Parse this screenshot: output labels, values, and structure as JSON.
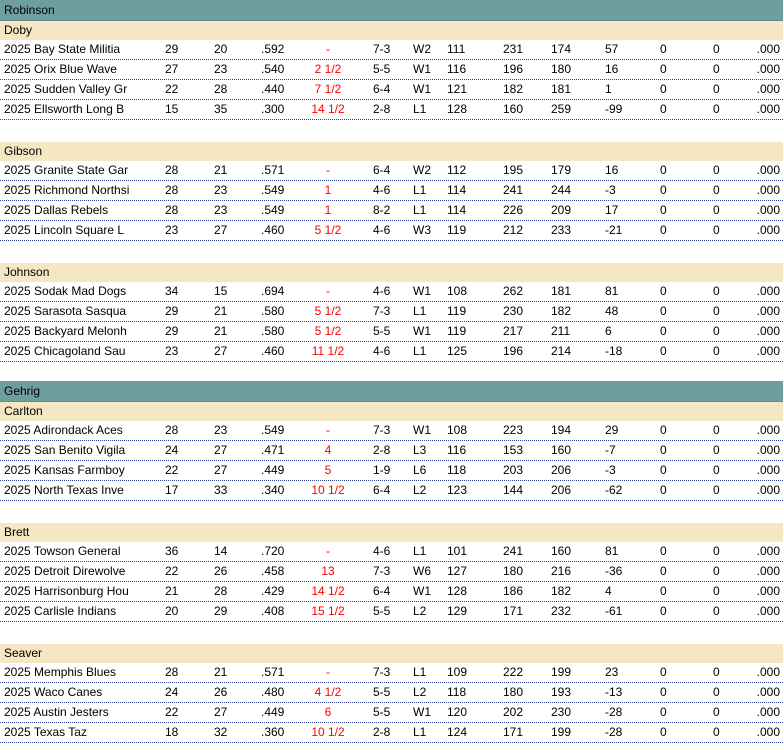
{
  "leagues": [
    {
      "name": "Robinson",
      "divisions": [
        {
          "name": "Doby",
          "teams": [
            [
              "2025 Bay State Militia",
              "29",
              "20",
              ".592",
              "-",
              "7-3",
              "W2",
              "111",
              "231",
              "174",
              "57",
              "0",
              "0",
              ".000"
            ],
            [
              "2025 Orix  Blue Wave",
              "27",
              "23",
              ".540",
              "2 1/2",
              "5-5",
              "W1",
              "116",
              "196",
              "180",
              "16",
              "0",
              "0",
              ".000"
            ],
            [
              "2025 Sudden Valley Gr",
              "22",
              "28",
              ".440",
              "7 1/2",
              "6-4",
              "W1",
              "121",
              "182",
              "181",
              "1",
              "0",
              "0",
              ".000"
            ],
            [
              "2025 Ellsworth Long B",
              "15",
              "35",
              ".300",
              "14 1/2",
              "2-8",
              "L1",
              "128",
              "160",
              "259",
              "-99",
              "0",
              "0",
              ".000"
            ]
          ]
        },
        {
          "name": "Gibson",
          "teams": [
            [
              "2025 Granite State Gar",
              "28",
              "21",
              ".571",
              "-",
              "6-4",
              "W2",
              "112",
              "195",
              "179",
              "16",
              "0",
              "0",
              ".000"
            ],
            [
              "2025 Richmond Northsi",
              "28",
              "23",
              ".549",
              "1",
              "4-6",
              "L1",
              "114",
              "241",
              "244",
              "-3",
              "0",
              "0",
              ".000"
            ],
            [
              "2025 Dallas Rebels",
              "28",
              "23",
              ".549",
              "1",
              "8-2",
              "L1",
              "114",
              "226",
              "209",
              "17",
              "0",
              "0",
              ".000"
            ],
            [
              "2025 Lincoln Square L",
              "23",
              "27",
              ".460",
              "5 1/2",
              "4-6",
              "W3",
              "119",
              "212",
              "233",
              "-21",
              "0",
              "0",
              ".000"
            ]
          ]
        },
        {
          "name": "Johnson",
          "teams": [
            [
              "2025 Sodak Mad Dogs",
              "34",
              "15",
              ".694",
              "-",
              "4-6",
              "W1",
              "108",
              "262",
              "181",
              "81",
              "0",
              "0",
              ".000"
            ],
            [
              "2025 Sarasota Sasqua",
              "29",
              "21",
              ".580",
              "5 1/2",
              "7-3",
              "L1",
              "119",
              "230",
              "182",
              "48",
              "0",
              "0",
              ".000"
            ],
            [
              "2025 Backyard Melonh",
              "29",
              "21",
              ".580",
              "5 1/2",
              "5-5",
              "W1",
              "119",
              "217",
              "211",
              "6",
              "0",
              "0",
              ".000"
            ],
            [
              "2025 Chicagoland Sau",
              "23",
              "27",
              ".460",
              "11 1/2",
              "4-6",
              "L1",
              "125",
              "196",
              "214",
              "-18",
              "0",
              "0",
              ".000"
            ]
          ]
        }
      ]
    },
    {
      "name": "Gehrig",
      "divisions": [
        {
          "name": "Carlton",
          "teams": [
            [
              "2025 Adirondack Aces",
              "28",
              "23",
              ".549",
              "-",
              "7-3",
              "W1",
              "108",
              "223",
              "194",
              "29",
              "0",
              "0",
              ".000"
            ],
            [
              "2025 San Benito Vigila",
              "24",
              "27",
              ".471",
              "4",
              "2-8",
              "L3",
              "116",
              "153",
              "160",
              "-7",
              "0",
              "0",
              ".000"
            ],
            [
              "2025 Kansas Farmboy",
              "22",
              "27",
              ".449",
              "5",
              "1-9",
              "L6",
              "118",
              "203",
              "206",
              "-3",
              "0",
              "0",
              ".000"
            ],
            [
              "2025 North Texas Inve",
              "17",
              "33",
              ".340",
              "10 1/2",
              "6-4",
              "L2",
              "123",
              "144",
              "206",
              "-62",
              "0",
              "0",
              ".000"
            ]
          ]
        },
        {
          "name": "Brett",
          "teams": [
            [
              "2025 Towson  General",
              "36",
              "14",
              ".720",
              "-",
              "4-6",
              "L1",
              "101",
              "241",
              "160",
              "81",
              "0",
              "0",
              ".000"
            ],
            [
              "2025 Detroit Direwolve",
              "22",
              "26",
              ".458",
              "13",
              "7-3",
              "W6",
              "127",
              "180",
              "216",
              "-36",
              "0",
              "0",
              ".000"
            ],
            [
              "2025 Harrisonburg Hou",
              "21",
              "28",
              ".429",
              "14 1/2",
              "6-4",
              "W1",
              "128",
              "186",
              "182",
              "4",
              "0",
              "0",
              ".000"
            ],
            [
              "2025 Carlisle Indians",
              "20",
              "29",
              ".408",
              "15 1/2",
              "5-5",
              "L2",
              "129",
              "171",
              "232",
              "-61",
              "0",
              "0",
              ".000"
            ]
          ]
        },
        {
          "name": "Seaver",
          "teams": [
            [
              "2025 Memphis Blues",
              "28",
              "21",
              ".571",
              "-",
              "7-3",
              "L1",
              "109",
              "222",
              "199",
              "23",
              "0",
              "0",
              ".000"
            ],
            [
              "2025 Waco Canes",
              "24",
              "26",
              ".480",
              "4 1/2",
              "5-5",
              "L2",
              "118",
              "180",
              "193",
              "-13",
              "0",
              "0",
              ".000"
            ],
            [
              "2025 Austin Jesters",
              "22",
              "27",
              ".449",
              "6",
              "5-5",
              "W1",
              "120",
              "202",
              "230",
              "-28",
              "0",
              "0",
              ".000"
            ],
            [
              "2025 Texas Taz",
              "18",
              "32",
              ".360",
              "10 1/2",
              "2-8",
              "L1",
              "124",
              "171",
              "199",
              "-28",
              "0",
              "0",
              ".000"
            ]
          ]
        }
      ]
    }
  ],
  "colors": {
    "league_header_bg": "#6f9ea1",
    "division_header_bg": "#f5e6c4",
    "games_back": "#ff0000",
    "row_divider": "#3040a0"
  }
}
